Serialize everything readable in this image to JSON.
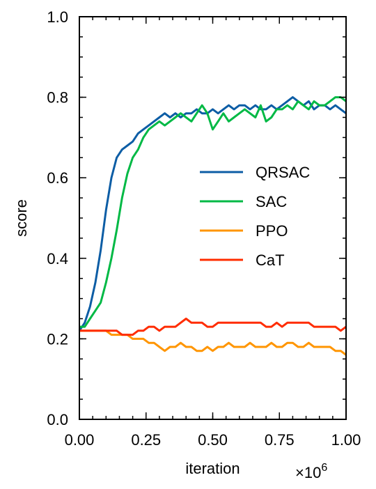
{
  "chart_data": {
    "type": "line",
    "xlabel": "iteration",
    "ylabel": "score",
    "x_multiplier_label": "×10",
    "x_multiplier_exponent": "6",
    "xlim": [
      0.0,
      1.0
    ],
    "ylim": [
      0.0,
      1.0
    ],
    "x_ticks": [
      "0.00",
      "0.25",
      "0.50",
      "0.75",
      "1.00"
    ],
    "y_ticks": [
      "0.0",
      "0.2",
      "0.4",
      "0.6",
      "0.8",
      "1.0"
    ],
    "legend_position": "center-right",
    "grid": false,
    "series": [
      {
        "name": "QRSAC",
        "color": "#0C5DA5",
        "x": [
          0.0,
          0.02,
          0.04,
          0.06,
          0.08,
          0.1,
          0.12,
          0.14,
          0.16,
          0.18,
          0.2,
          0.22,
          0.24,
          0.26,
          0.28,
          0.3,
          0.32,
          0.34,
          0.36,
          0.38,
          0.4,
          0.42,
          0.44,
          0.46,
          0.48,
          0.5,
          0.52,
          0.54,
          0.56,
          0.58,
          0.6,
          0.62,
          0.64,
          0.66,
          0.68,
          0.7,
          0.72,
          0.74,
          0.76,
          0.78,
          0.8,
          0.82,
          0.84,
          0.86,
          0.88,
          0.9,
          0.92,
          0.94,
          0.96,
          0.98,
          1.0
        ],
        "y": [
          0.22,
          0.24,
          0.28,
          0.34,
          0.42,
          0.52,
          0.6,
          0.65,
          0.67,
          0.68,
          0.69,
          0.71,
          0.72,
          0.73,
          0.74,
          0.75,
          0.76,
          0.75,
          0.76,
          0.75,
          0.76,
          0.76,
          0.77,
          0.76,
          0.76,
          0.77,
          0.76,
          0.77,
          0.78,
          0.77,
          0.78,
          0.78,
          0.77,
          0.78,
          0.77,
          0.77,
          0.78,
          0.77,
          0.78,
          0.79,
          0.8,
          0.79,
          0.78,
          0.79,
          0.77,
          0.78,
          0.78,
          0.77,
          0.78,
          0.77,
          0.76
        ]
      },
      {
        "name": "SAC",
        "color": "#00B945",
        "x": [
          0.0,
          0.02,
          0.04,
          0.06,
          0.08,
          0.1,
          0.12,
          0.14,
          0.16,
          0.18,
          0.2,
          0.22,
          0.24,
          0.26,
          0.28,
          0.3,
          0.32,
          0.34,
          0.36,
          0.38,
          0.4,
          0.42,
          0.44,
          0.46,
          0.48,
          0.5,
          0.52,
          0.54,
          0.56,
          0.58,
          0.6,
          0.62,
          0.64,
          0.66,
          0.68,
          0.7,
          0.72,
          0.74,
          0.76,
          0.78,
          0.8,
          0.82,
          0.84,
          0.86,
          0.88,
          0.9,
          0.92,
          0.94,
          0.96,
          0.98,
          1.0
        ],
        "y": [
          0.23,
          0.23,
          0.25,
          0.27,
          0.29,
          0.34,
          0.4,
          0.47,
          0.55,
          0.61,
          0.65,
          0.67,
          0.7,
          0.72,
          0.73,
          0.74,
          0.73,
          0.74,
          0.75,
          0.76,
          0.75,
          0.74,
          0.76,
          0.78,
          0.76,
          0.72,
          0.74,
          0.76,
          0.74,
          0.75,
          0.76,
          0.77,
          0.76,
          0.75,
          0.78,
          0.74,
          0.75,
          0.77,
          0.77,
          0.78,
          0.77,
          0.79,
          0.78,
          0.77,
          0.79,
          0.78,
          0.78,
          0.79,
          0.8,
          0.8,
          0.79
        ]
      },
      {
        "name": "PPO",
        "color": "#FF9500",
        "x": [
          0.0,
          0.02,
          0.04,
          0.06,
          0.08,
          0.1,
          0.12,
          0.14,
          0.16,
          0.18,
          0.2,
          0.22,
          0.24,
          0.26,
          0.28,
          0.3,
          0.32,
          0.34,
          0.36,
          0.38,
          0.4,
          0.42,
          0.44,
          0.46,
          0.48,
          0.5,
          0.52,
          0.54,
          0.56,
          0.58,
          0.6,
          0.62,
          0.64,
          0.66,
          0.68,
          0.7,
          0.72,
          0.74,
          0.76,
          0.78,
          0.8,
          0.82,
          0.84,
          0.86,
          0.88,
          0.9,
          0.92,
          0.94,
          0.96,
          0.98,
          1.0
        ],
        "y": [
          0.22,
          0.22,
          0.22,
          0.22,
          0.22,
          0.22,
          0.21,
          0.21,
          0.21,
          0.21,
          0.2,
          0.2,
          0.2,
          0.19,
          0.19,
          0.18,
          0.17,
          0.18,
          0.18,
          0.19,
          0.18,
          0.18,
          0.17,
          0.17,
          0.18,
          0.17,
          0.18,
          0.18,
          0.19,
          0.18,
          0.18,
          0.18,
          0.19,
          0.18,
          0.18,
          0.18,
          0.19,
          0.18,
          0.18,
          0.19,
          0.19,
          0.18,
          0.18,
          0.19,
          0.18,
          0.18,
          0.18,
          0.18,
          0.17,
          0.17,
          0.16
        ]
      },
      {
        "name": "CaT",
        "color": "#FF2C00",
        "x": [
          0.0,
          0.02,
          0.04,
          0.06,
          0.08,
          0.1,
          0.12,
          0.14,
          0.16,
          0.18,
          0.2,
          0.22,
          0.24,
          0.26,
          0.28,
          0.3,
          0.32,
          0.34,
          0.36,
          0.38,
          0.4,
          0.42,
          0.44,
          0.46,
          0.48,
          0.5,
          0.52,
          0.54,
          0.56,
          0.58,
          0.6,
          0.62,
          0.64,
          0.66,
          0.68,
          0.7,
          0.72,
          0.74,
          0.76,
          0.78,
          0.8,
          0.82,
          0.84,
          0.86,
          0.88,
          0.9,
          0.92,
          0.94,
          0.96,
          0.98,
          1.0
        ],
        "y": [
          0.22,
          0.22,
          0.22,
          0.22,
          0.22,
          0.22,
          0.22,
          0.22,
          0.21,
          0.21,
          0.21,
          0.22,
          0.22,
          0.23,
          0.23,
          0.22,
          0.23,
          0.23,
          0.23,
          0.24,
          0.25,
          0.24,
          0.24,
          0.24,
          0.23,
          0.23,
          0.24,
          0.24,
          0.24,
          0.24,
          0.24,
          0.24,
          0.24,
          0.24,
          0.24,
          0.23,
          0.23,
          0.24,
          0.23,
          0.24,
          0.24,
          0.24,
          0.24,
          0.24,
          0.23,
          0.23,
          0.23,
          0.23,
          0.23,
          0.22,
          0.23
        ]
      }
    ]
  }
}
